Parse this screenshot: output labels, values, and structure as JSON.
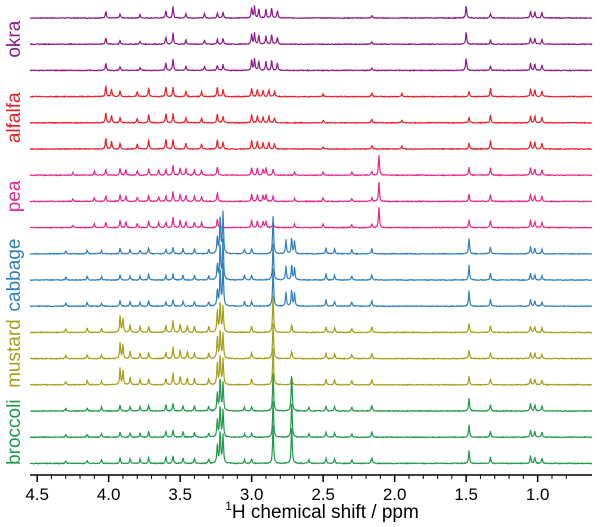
{
  "chart_data": {
    "type": "line",
    "xlabel_sup": "1",
    "xlabel_main": "H chemical shift / ppm",
    "x_reversed": true,
    "xlim": [
      4.55,
      0.62
    ],
    "x_ticks": [
      4.5,
      4.0,
      3.5,
      3.0,
      2.5,
      2.0,
      1.5,
      1.0
    ],
    "x_tick_labels": [
      "4.5",
      "4.0",
      "3.5",
      "3.0",
      "2.5",
      "2.0",
      "1.5",
      "1.0"
    ],
    "grid": false,
    "legend": "none",
    "groups": [
      {
        "label": "okra",
        "color": "#8e1a8a",
        "traces": 3,
        "peaks": [
          [
            4.02,
            0.55
          ],
          [
            3.92,
            0.3
          ],
          [
            3.78,
            0.25
          ],
          [
            3.6,
            0.6
          ],
          [
            3.55,
            0.9
          ],
          [
            3.46,
            0.35
          ],
          [
            3.33,
            0.35
          ],
          [
            3.24,
            0.4
          ],
          [
            3.2,
            0.45
          ],
          [
            3.0,
            0.85
          ],
          [
            2.98,
            0.9
          ],
          [
            2.95,
            0.75
          ],
          [
            2.9,
            0.7
          ],
          [
            2.86,
            0.8
          ],
          [
            2.82,
            0.6
          ],
          [
            2.16,
            0.2
          ],
          [
            1.5,
            1.0
          ],
          [
            1.33,
            0.35
          ],
          [
            1.05,
            0.55
          ],
          [
            1.02,
            0.5
          ],
          [
            0.97,
            0.45
          ]
        ]
      },
      {
        "label": "alfalfa",
        "color": "#e8202a",
        "traces": 3,
        "peaks": [
          [
            4.02,
            0.85
          ],
          [
            3.98,
            0.6
          ],
          [
            3.92,
            0.45
          ],
          [
            3.8,
            0.4
          ],
          [
            3.72,
            0.7
          ],
          [
            3.6,
            0.8
          ],
          [
            3.55,
            0.75
          ],
          [
            3.46,
            0.45
          ],
          [
            3.35,
            0.4
          ],
          [
            3.24,
            0.75
          ],
          [
            3.2,
            0.55
          ],
          [
            3.0,
            0.7
          ],
          [
            2.96,
            0.6
          ],
          [
            2.92,
            0.5
          ],
          [
            2.88,
            0.55
          ],
          [
            2.84,
            0.45
          ],
          [
            2.5,
            0.2
          ],
          [
            2.16,
            0.3
          ],
          [
            1.95,
            0.25
          ],
          [
            1.48,
            0.45
          ],
          [
            1.33,
            0.65
          ],
          [
            1.05,
            0.6
          ],
          [
            1.02,
            0.55
          ],
          [
            0.97,
            0.45
          ]
        ]
      },
      {
        "label": "pea",
        "color": "#e6288a",
        "traces": 3,
        "peaks": [
          [
            4.25,
            0.2
          ],
          [
            4.1,
            0.3
          ],
          [
            4.02,
            0.45
          ],
          [
            3.92,
            0.55
          ],
          [
            3.88,
            0.45
          ],
          [
            3.8,
            0.35
          ],
          [
            3.72,
            0.5
          ],
          [
            3.65,
            0.4
          ],
          [
            3.6,
            0.45
          ],
          [
            3.55,
            0.8
          ],
          [
            3.5,
            0.6
          ],
          [
            3.46,
            0.5
          ],
          [
            3.4,
            0.45
          ],
          [
            3.35,
            0.4
          ],
          [
            3.24,
            0.7
          ],
          [
            3.0,
            0.6
          ],
          [
            2.96,
            0.55
          ],
          [
            2.92,
            0.5
          ],
          [
            2.9,
            0.55
          ],
          [
            2.85,
            0.45
          ],
          [
            2.7,
            0.25
          ],
          [
            2.5,
            0.3
          ],
          [
            2.3,
            0.25
          ],
          [
            2.16,
            0.3
          ],
          [
            2.11,
            1.6
          ],
          [
            1.48,
            0.6
          ],
          [
            1.33,
            0.55
          ],
          [
            1.05,
            0.6
          ],
          [
            1.02,
            0.5
          ],
          [
            0.97,
            0.45
          ]
        ]
      },
      {
        "label": "cabbage",
        "color": "#2f7fc0",
        "traces": 3,
        "peaks": [
          [
            4.3,
            0.25
          ],
          [
            4.15,
            0.3
          ],
          [
            4.05,
            0.25
          ],
          [
            3.92,
            0.45
          ],
          [
            3.85,
            0.35
          ],
          [
            3.78,
            0.3
          ],
          [
            3.72,
            0.45
          ],
          [
            3.6,
            0.35
          ],
          [
            3.55,
            0.5
          ],
          [
            3.48,
            0.4
          ],
          [
            3.4,
            0.4
          ],
          [
            3.3,
            0.35
          ],
          [
            3.24,
            1.3
          ],
          [
            3.22,
            3.0
          ],
          [
            3.2,
            3.2
          ],
          [
            3.05,
            0.4
          ],
          [
            3.0,
            0.4
          ],
          [
            2.85,
            3.0
          ],
          [
            2.76,
            1.1
          ],
          [
            2.72,
            1.3
          ],
          [
            2.7,
            1.0
          ],
          [
            2.48,
            0.5
          ],
          [
            2.42,
            0.4
          ],
          [
            2.3,
            0.35
          ],
          [
            2.16,
            0.45
          ],
          [
            1.48,
            1.2
          ],
          [
            1.33,
            0.55
          ],
          [
            1.05,
            0.55
          ],
          [
            1.02,
            0.45
          ],
          [
            0.97,
            0.35
          ]
        ]
      },
      {
        "label": "mustard",
        "color": "#a3a01a",
        "traces": 3,
        "peaks": [
          [
            4.3,
            0.3
          ],
          [
            4.15,
            0.35
          ],
          [
            4.05,
            0.3
          ],
          [
            3.92,
            1.3
          ],
          [
            3.9,
            1.1
          ],
          [
            3.85,
            0.6
          ],
          [
            3.78,
            0.45
          ],
          [
            3.72,
            0.5
          ],
          [
            3.6,
            0.55
          ],
          [
            3.55,
            0.95
          ],
          [
            3.5,
            0.7
          ],
          [
            3.45,
            0.55
          ],
          [
            3.4,
            0.5
          ],
          [
            3.3,
            0.5
          ],
          [
            3.24,
            1.8
          ],
          [
            3.22,
            2.4
          ],
          [
            3.2,
            2.0
          ],
          [
            3.0,
            0.5
          ],
          [
            2.85,
            2.9
          ],
          [
            2.72,
            0.6
          ],
          [
            2.48,
            0.45
          ],
          [
            2.42,
            0.4
          ],
          [
            2.3,
            0.35
          ],
          [
            2.16,
            0.45
          ],
          [
            1.48,
            0.7
          ],
          [
            1.33,
            0.5
          ],
          [
            1.05,
            0.5
          ],
          [
            1.02,
            0.45
          ],
          [
            0.97,
            0.35
          ]
        ]
      },
      {
        "label": "broccoli",
        "color": "#1f9a4a",
        "traces": 3,
        "peaks": [
          [
            4.3,
            0.2
          ],
          [
            4.15,
            0.25
          ],
          [
            4.05,
            0.3
          ],
          [
            3.92,
            0.45
          ],
          [
            3.85,
            0.35
          ],
          [
            3.78,
            0.35
          ],
          [
            3.72,
            0.45
          ],
          [
            3.6,
            0.5
          ],
          [
            3.55,
            0.6
          ],
          [
            3.48,
            0.45
          ],
          [
            3.4,
            0.4
          ],
          [
            3.3,
            0.35
          ],
          [
            3.24,
            1.5
          ],
          [
            3.22,
            2.6
          ],
          [
            3.2,
            2.2
          ],
          [
            3.05,
            0.3
          ],
          [
            3.0,
            0.35
          ],
          [
            2.85,
            3.0
          ],
          [
            2.72,
            3.0
          ],
          [
            2.6,
            0.3
          ],
          [
            2.48,
            0.4
          ],
          [
            2.42,
            0.35
          ],
          [
            2.3,
            0.3
          ],
          [
            2.16,
            0.45
          ],
          [
            1.48,
            1.0
          ],
          [
            1.33,
            0.5
          ],
          [
            1.05,
            0.6
          ],
          [
            1.02,
            0.5
          ],
          [
            0.97,
            0.4
          ]
        ]
      }
    ]
  }
}
